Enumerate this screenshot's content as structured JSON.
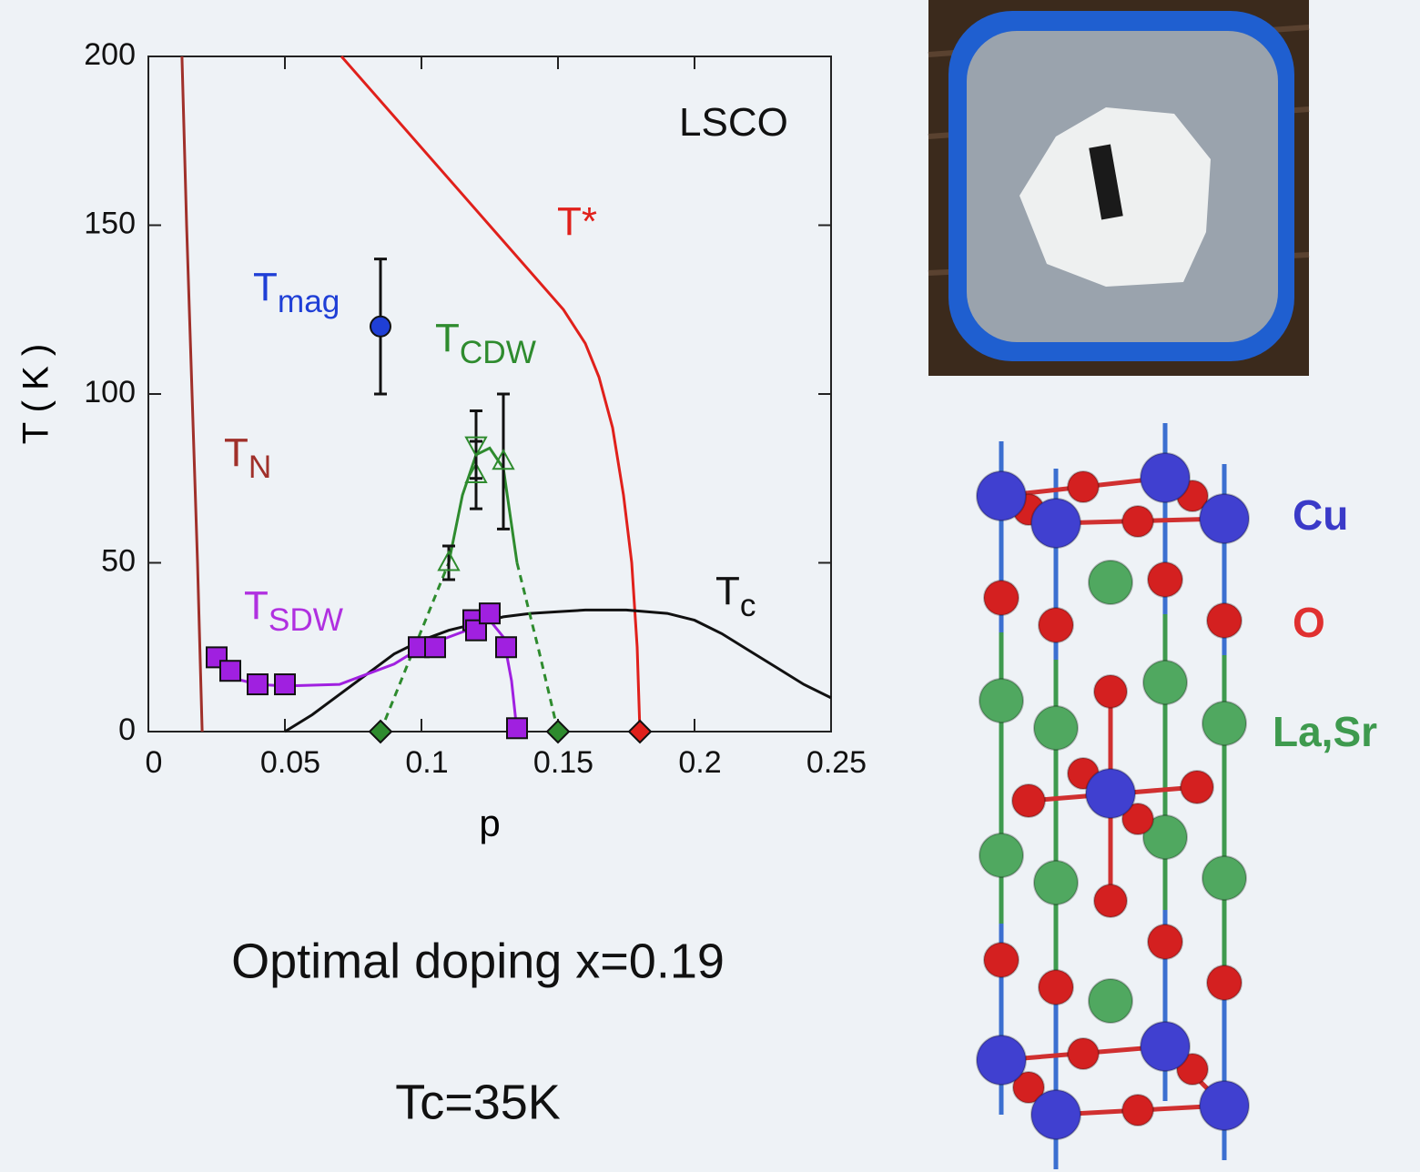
{
  "chart_data": {
    "type": "line",
    "xlabel": "p",
    "ylabel": "T ( K )",
    "xlim": [
      0,
      0.25
    ],
    "ylim": [
      0,
      200
    ],
    "xticks": [
      0,
      0.05,
      0.1,
      0.15,
      0.2,
      0.25
    ],
    "yticks": [
      0,
      50,
      100,
      150,
      200
    ],
    "annotations": [
      {
        "text": "LSCO",
        "color": "#111111"
      },
      {
        "text": "T*",
        "color": "#e0201b"
      },
      {
        "text": "T",
        "sub": "mag",
        "color": "#1f3fd6"
      },
      {
        "text": "T",
        "sub": "CDW",
        "color": "#2e8b2e"
      },
      {
        "text": "T",
        "sub": "N",
        "color": "#a0302a"
      },
      {
        "text": "T",
        "sub": "SDW",
        "color": "#b030e0"
      },
      {
        "text": "T",
        "sub": "c",
        "color": "#111111"
      }
    ],
    "series": [
      {
        "color": "#a0302a",
        "style": "line",
        "x": [
          0.0123,
          0.014,
          0.016,
          0.018,
          0.0197
        ],
        "values": [
          200,
          150,
          100,
          50,
          0
        ]
      },
      {
        "color": "#e0201b",
        "style": "line",
        "x": [
          0.0707,
          0.152,
          0.16,
          0.165,
          0.17,
          0.174,
          0.177,
          0.179,
          0.18
        ],
        "values": [
          200,
          125,
          115,
          105,
          90,
          70,
          50,
          25,
          0
        ]
      },
      {
        "color": "#111111",
        "style": "line",
        "x": [
          0.05,
          0.06,
          0.07,
          0.08,
          0.09,
          0.1,
          0.11,
          0.12,
          0.13,
          0.14,
          0.15,
          0.16,
          0.175,
          0.19,
          0.2,
          0.21,
          0.22,
          0.23,
          0.24,
          0.25
        ],
        "values": [
          0,
          5,
          11,
          17,
          23,
          27,
          30,
          32,
          34,
          35,
          35.5,
          36,
          36,
          35,
          33,
          29,
          24,
          19,
          14,
          10
        ]
      },
      {
        "color": "#a020e0",
        "style": "line",
        "x": [
          0.025,
          0.03,
          0.04,
          0.05,
          0.07,
          0.09,
          0.1,
          0.11,
          0.12,
          0.125,
          0.13,
          0.133,
          0.135
        ],
        "values": [
          20,
          16,
          14,
          13.5,
          14,
          20,
          25,
          28,
          31,
          33,
          28,
          15,
          0
        ]
      },
      {
        "color": "#2e8b2e",
        "style": "line",
        "x": [
          0.11,
          0.115,
          0.12,
          0.125,
          0.13,
          0.135
        ],
        "values": [
          50,
          70,
          82,
          84,
          78,
          50
        ]
      },
      {
        "color": "#2e8b2e",
        "style": "dash",
        "x": [
          0.085,
          0.098,
          0.11,
          0.12,
          0.135,
          0.143,
          0.15
        ],
        "values": [
          0,
          26,
          50,
          null,
          50,
          24,
          0
        ]
      },
      {
        "color": "#a020e0",
        "marker": "square",
        "x": [
          0.025,
          0.03,
          0.04,
          0.05,
          0.099,
          0.105,
          0.119,
          0.12,
          0.125,
          0.131,
          0.135
        ],
        "values": [
          22,
          18,
          14,
          14,
          25,
          25,
          33,
          30,
          35,
          25,
          1
        ]
      },
      {
        "color": "#2e8b2e",
        "marker": "triangle-up",
        "x": [
          0.11,
          0.12,
          0.13
        ],
        "values": [
          50,
          76,
          80
        ],
        "errors": [
          5,
          10,
          20
        ]
      },
      {
        "color": "#2e8b2e",
        "marker": "triangle-down",
        "x": [
          0.12
        ],
        "values": [
          85
        ],
        "errors": [
          10
        ]
      },
      {
        "color": "#2e8b2e",
        "marker": "diamond",
        "x": [
          0.085,
          0.15
        ],
        "values": [
          0,
          0
        ]
      },
      {
        "color": "#e0201b",
        "marker": "diamond",
        "x": [
          0.18
        ],
        "values": [
          0
        ]
      },
      {
        "color": "#1f3fd6",
        "marker": "circle",
        "x": [
          0.085
        ],
        "values": [
          120
        ],
        "errors": [
          20
        ]
      }
    ]
  },
  "slide": {
    "texts": [
      "Optimal doping x=0.19",
      "Tc=35K"
    ]
  },
  "crystal": {
    "labels": [
      {
        "text": "Cu",
        "color": "#3a3ac8"
      },
      {
        "text": "O",
        "color": "#e03030"
      },
      {
        "text": "La,Sr",
        "color": "#3e9a4e"
      }
    ]
  }
}
